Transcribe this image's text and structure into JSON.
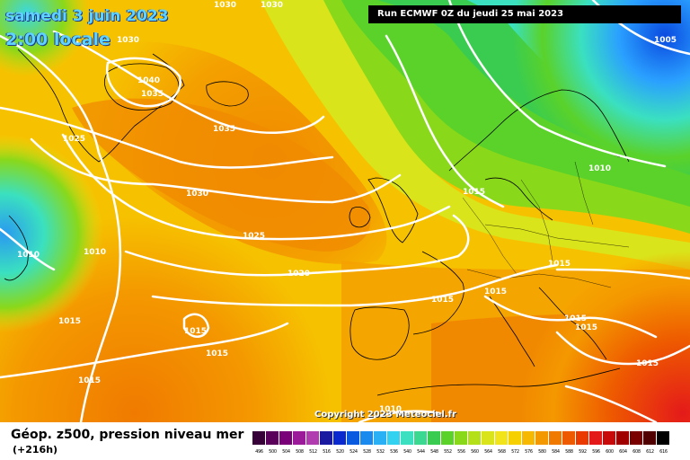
{
  "title": {
    "date": "samedi 3 juin 2023",
    "time": "2:00 locale"
  },
  "run_info": "Run ECMWF 0Z du jeudi 25 mai 2023",
  "copyright": "Copyright 2023 Meteociel.fr",
  "footer": {
    "title": "Géop. z500, pression niveau mer",
    "subtitle": "(+216h)"
  },
  "colors": {
    "background_low": "#2aa0ff",
    "background_mid": "#f6d000",
    "background_high": "#f07a00",
    "isobar": "#ffffff"
  },
  "scale": {
    "labels": [
      "496",
      "500",
      "504",
      "508",
      "512",
      "516",
      "520",
      "524",
      "528",
      "532",
      "536",
      "540",
      "544",
      "548",
      "552",
      "556",
      "560",
      "564",
      "568",
      "572",
      "576",
      "580",
      "584",
      "588",
      "592",
      "596",
      "600",
      "604",
      "608",
      "612",
      "616"
    ],
    "colors": [
      "#380038",
      "#5a005a",
      "#7a007a",
      "#9a1a9a",
      "#b03cb0",
      "#1a1aa0",
      "#0a2ad0",
      "#0a5ae0",
      "#1a8aee",
      "#2ab0f4",
      "#32d2f0",
      "#3ae0c0",
      "#3ad890",
      "#3acc50",
      "#5ad22a",
      "#8ad81a",
      "#b4e01a",
      "#dae41a",
      "#f2e41a",
      "#f6d000",
      "#f6b800",
      "#f49800",
      "#f07a00",
      "#ee5a00",
      "#ea3a00",
      "#e41a1a",
      "#c80a0a",
      "#a00000",
      "#7a0000",
      "#500000",
      "#000000"
    ]
  },
  "pressure_labels": [
    {
      "text": "1030"
    },
    {
      "text": "1030"
    },
    {
      "text": "1030"
    },
    {
      "text": "1040"
    },
    {
      "text": "1035"
    },
    {
      "text": "1035"
    },
    {
      "text": "1025"
    },
    {
      "text": "1030"
    },
    {
      "text": "1025"
    },
    {
      "text": "1010"
    },
    {
      "text": "1010"
    },
    {
      "text": "1020"
    },
    {
      "text": "1015"
    },
    {
      "text": "1015"
    },
    {
      "text": "1015"
    },
    {
      "text": "1015"
    },
    {
      "text": "1015"
    },
    {
      "text": "1015"
    },
    {
      "text": "1015"
    },
    {
      "text": "1015"
    },
    {
      "text": "1015"
    },
    {
      "text": "1015"
    },
    {
      "text": "1010"
    },
    {
      "text": "1005"
    },
    {
      "text": "1010"
    },
    {
      "text": "1015"
    }
  ]
}
